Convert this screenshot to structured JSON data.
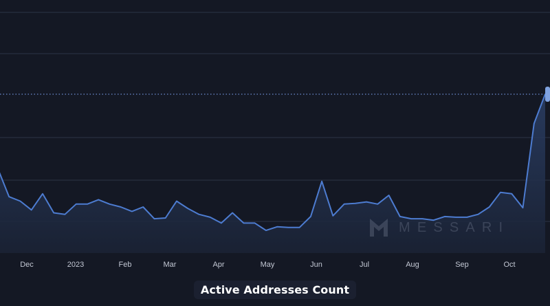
{
  "chart_data": {
    "type": "area",
    "title": "",
    "xlabel": "",
    "ylabel": "",
    "x_tick_labels": [
      "Dec",
      "2023",
      "Feb",
      "Mar",
      "Apr",
      "May",
      "Jun",
      "Jul",
      "Aug",
      "Sep",
      "Oct"
    ],
    "y_gridlines": 6,
    "y_axis_labels_visible": false,
    "normalized_scale": true,
    "ylim": [
      0,
      1
    ],
    "series": [
      {
        "name": "Active Addresses Count",
        "color": "#4d7cd1",
        "values": [
          0.49,
          0.3,
          0.27,
          0.21,
          0.32,
          0.19,
          0.18,
          0.25,
          0.25,
          0.28,
          0.25,
          0.23,
          0.2,
          0.23,
          0.15,
          0.155,
          0.27,
          0.22,
          0.18,
          0.16,
          0.12,
          0.19,
          0.12,
          0.12,
          0.07,
          0.095,
          0.09,
          0.09,
          0.165,
          0.405,
          0.17,
          0.25,
          0.255,
          0.265,
          0.25,
          0.31,
          0.165,
          0.15,
          0.15,
          0.14,
          0.165,
          0.16,
          0.16,
          0.18,
          0.23,
          0.33,
          0.32,
          0.225,
          0.8,
          1.0
        ]
      }
    ],
    "legend": {
      "placement": "bottom-center",
      "label": "Active Addresses Count"
    },
    "watermark": "MESSARI",
    "colors": {
      "background": "#141824",
      "gridline": "#2c3346",
      "line": "#4d7cd1",
      "area_top": "#2b3f66",
      "reference_line": "#6f8fd4",
      "tick_text": "#c3c8d4"
    }
  }
}
